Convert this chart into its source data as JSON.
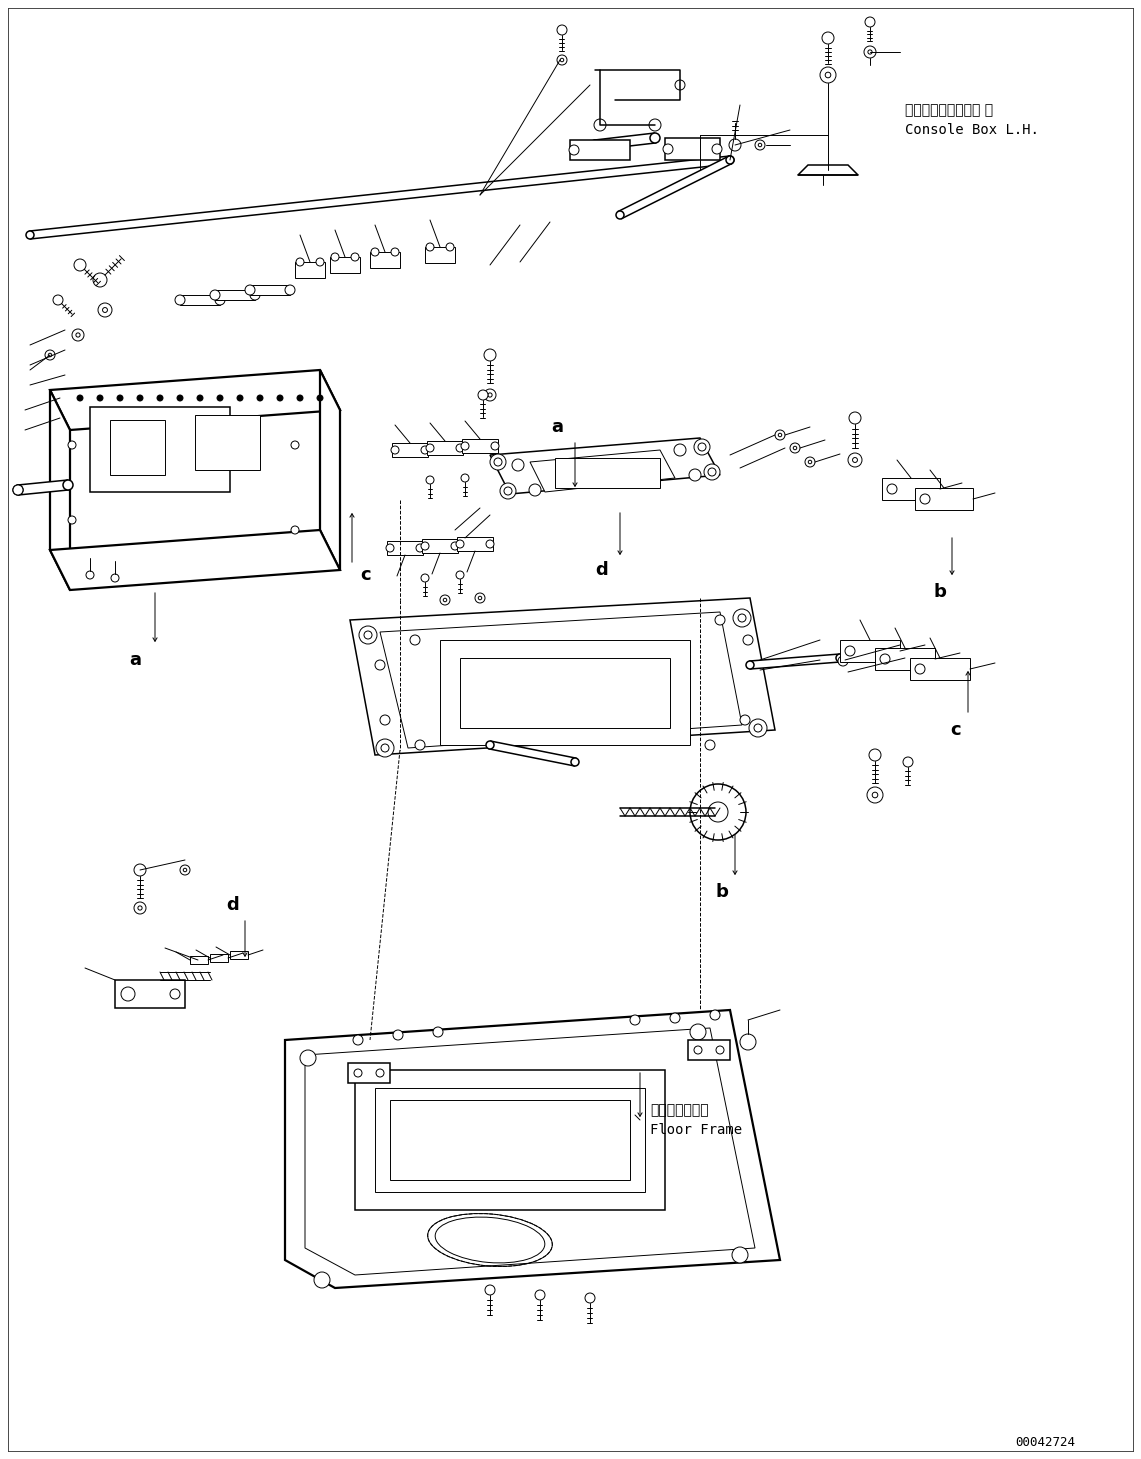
{
  "bg_color": "#ffffff",
  "lc": "#000000",
  "fig_width": 11.41,
  "fig_height": 14.59,
  "dpi": 100,
  "part_number": "00042724",
  "label_console_box_jp": "コンソールボックス 左",
  "label_console_box_en": "Console Box L.H.",
  "label_floor_frame_jp": "フロアフレーム",
  "label_floor_frame_en": "Floor Frame",
  "label_a": "a",
  "label_b": "b",
  "label_c": "c",
  "label_d": "d",
  "lw_thin": 0.7,
  "lw_med": 1.1,
  "lw_thick": 1.6
}
